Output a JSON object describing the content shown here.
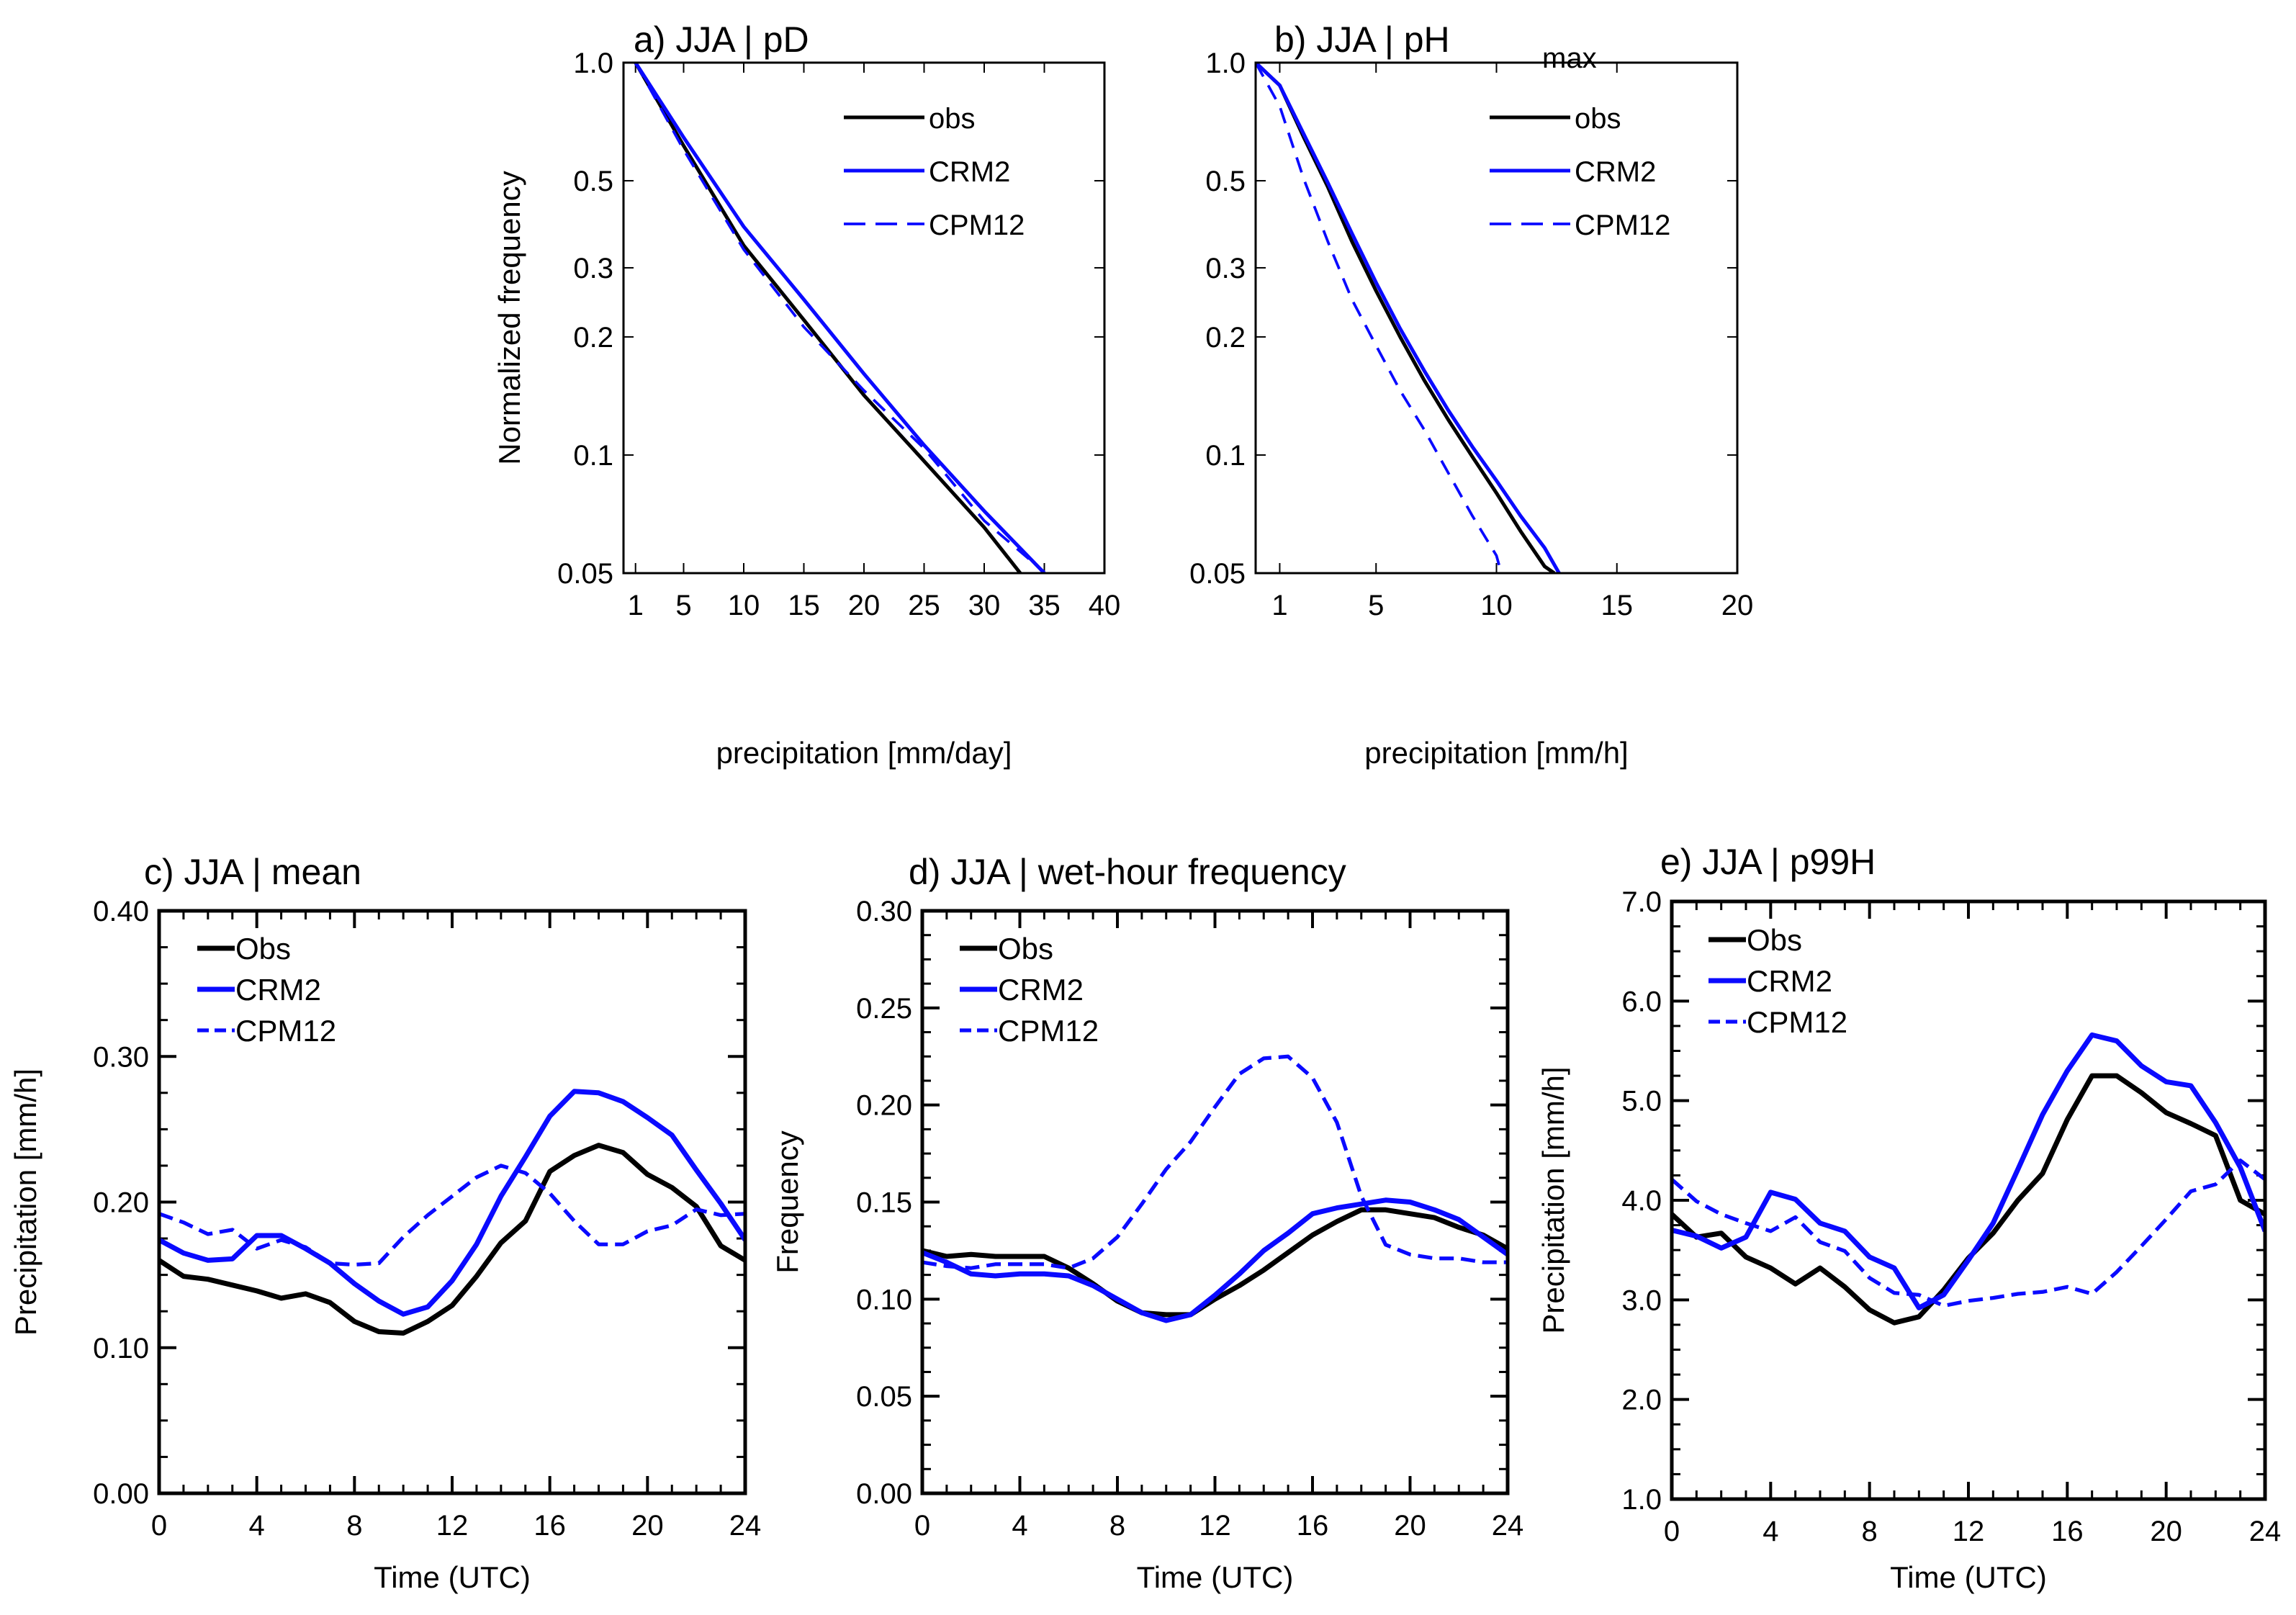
{
  "colors": {
    "obs": "#000000",
    "model": "#0a0aff",
    "axis": "#000000"
  },
  "chart_data": [
    {
      "id": "a",
      "type": "line",
      "title": "a) JJA | pD",
      "title_sub": "",
      "xlabel": "precipitation [mm/day]",
      "ylabel": "Normalized frequency",
      "yscale": "log",
      "xlim": [
        0,
        40
      ],
      "ylim": [
        0.05,
        1.0
      ],
      "xticks": [
        1,
        5,
        10,
        15,
        20,
        25,
        30,
        35,
        40
      ],
      "xtick_labels": [
        "1",
        "5",
        "10",
        "15",
        "20",
        "25",
        "30",
        "35",
        "40"
      ],
      "yticks": [
        0.05,
        0.1,
        0.2,
        0.3,
        0.5,
        1.0
      ],
      "ytick_labels": [
        "0.05",
        "0.1",
        "0.2",
        "0.3",
        "0.5",
        "1.0"
      ],
      "legend": "top-right",
      "series": [
        {
          "name": "obs",
          "style": "solid-black",
          "x": [
            1,
            5,
            10,
            15,
            20,
            25,
            30,
            33
          ],
          "y": [
            1.0,
            0.614,
            0.342,
            0.221,
            0.142,
            0.0965,
            0.0654,
            0.05
          ]
        },
        {
          "name": "CRM2",
          "style": "solid-blue",
          "x": [
            1,
            5,
            10,
            15,
            20,
            25,
            30,
            35
          ],
          "y": [
            1.0,
            0.645,
            0.382,
            0.249,
            0.161,
            0.106,
            0.072,
            0.05
          ]
        },
        {
          "name": "CPM12",
          "style": "dashed-blue",
          "x": [
            1,
            5,
            10,
            15,
            20,
            25,
            30,
            35
          ],
          "y": [
            1.0,
            0.6,
            0.334,
            0.212,
            0.146,
            0.104,
            0.068,
            0.0503
          ]
        }
      ]
    },
    {
      "id": "b",
      "type": "line",
      "title": "b) JJA | pH",
      "title_sub": "max",
      "xlabel": "precipitation [mm/h]",
      "ylabel": "",
      "yscale": "log",
      "xlim": [
        0,
        20
      ],
      "ylim": [
        0.05,
        1.0
      ],
      "xticks": [
        1,
        5,
        10,
        15,
        20
      ],
      "xtick_labels": [
        "1",
        "5",
        "10",
        "15",
        "20"
      ],
      "yticks": [
        0.05,
        0.1,
        0.2,
        0.3,
        0.5,
        1.0
      ],
      "ytick_labels": [
        "0.05",
        "0.1",
        "0.2",
        "0.3",
        "0.5",
        "1.0"
      ],
      "legend": "top-right",
      "series": [
        {
          "name": "obs",
          "style": "solid-black",
          "x": [
            0,
            1,
            2,
            3,
            4,
            5,
            6,
            7,
            8,
            9,
            10,
            11,
            12,
            12.4
          ],
          "y": [
            1.0,
            0.875,
            0.645,
            0.482,
            0.35,
            0.262,
            0.2,
            0.155,
            0.123,
            0.099,
            0.08,
            0.064,
            0.052,
            0.05
          ]
        },
        {
          "name": "CRM2",
          "style": "solid-blue",
          "x": [
            0,
            1,
            2,
            3,
            4,
            5,
            6,
            7,
            8,
            9,
            10,
            11,
            12,
            12.6
          ],
          "y": [
            1.0,
            0.875,
            0.657,
            0.494,
            0.367,
            0.275,
            0.21,
            0.164,
            0.13,
            0.105,
            0.086,
            0.07,
            0.058,
            0.05
          ]
        },
        {
          "name": "CPM12",
          "style": "dashed-blue",
          "x": [
            0,
            1,
            2,
            3,
            4,
            5,
            6,
            7,
            8,
            9,
            10,
            10.2
          ],
          "y": [
            1.0,
            0.774,
            0.505,
            0.35,
            0.249,
            0.19,
            0.146,
            0.116,
            0.09,
            0.07,
            0.0554,
            0.05
          ]
        }
      ]
    },
    {
      "id": "c",
      "type": "line",
      "title": "c) JJA | mean",
      "title_sub": "",
      "xlabel": "Time (UTC)",
      "ylabel": "Precipitation [mm/h]",
      "yscale": "linear",
      "xlim": [
        0,
        24
      ],
      "ylim": [
        0,
        0.4
      ],
      "xticks": [
        0,
        4,
        8,
        12,
        16,
        20,
        24
      ],
      "xtick_labels": [
        "0",
        "4",
        "8",
        "12",
        "16",
        "20",
        "24"
      ],
      "x_minor_step": 1,
      "yticks": [
        0,
        0.1,
        0.2,
        0.3,
        0.4
      ],
      "ytick_labels": [
        "0.00",
        "0.10",
        "0.20",
        "0.30",
        "0.40"
      ],
      "y_minor_step": 0.025,
      "legend": "top-left",
      "series": [
        {
          "name": "Obs",
          "style": "solid-black",
          "x": [
            0,
            1,
            2,
            3,
            4,
            5,
            6,
            7,
            8,
            9,
            10,
            11,
            12,
            13,
            14,
            15,
            16,
            17,
            18,
            19,
            20,
            21,
            22,
            23,
            24
          ],
          "y": [
            0.16,
            0.149,
            0.147,
            0.143,
            0.139,
            0.134,
            0.137,
            0.131,
            0.118,
            0.111,
            0.11,
            0.118,
            0.129,
            0.149,
            0.172,
            0.187,
            0.221,
            0.232,
            0.239,
            0.234,
            0.219,
            0.21,
            0.197,
            0.17,
            0.16
          ]
        },
        {
          "name": "CRM2",
          "style": "solid-blue",
          "x": [
            0,
            1,
            2,
            3,
            4,
            5,
            6,
            7,
            8,
            9,
            10,
            11,
            12,
            13,
            14,
            15,
            16,
            17,
            18,
            19,
            20,
            21,
            22,
            23,
            24
          ],
          "y": [
            0.174,
            0.165,
            0.16,
            0.161,
            0.177,
            0.177,
            0.168,
            0.158,
            0.144,
            0.132,
            0.123,
            0.128,
            0.146,
            0.171,
            0.204,
            0.231,
            0.259,
            0.276,
            0.275,
            0.269,
            0.258,
            0.246,
            0.222,
            0.199,
            0.174
          ]
        },
        {
          "name": "CPM12",
          "style": "dashed-blue",
          "x": [
            0,
            1,
            2,
            3,
            4,
            5,
            6,
            7,
            8,
            9,
            10,
            11,
            12,
            13,
            14,
            15,
            16,
            17,
            18,
            19,
            20,
            21,
            22,
            23,
            24
          ],
          "y": [
            0.192,
            0.186,
            0.178,
            0.181,
            0.168,
            0.174,
            0.169,
            0.158,
            0.157,
            0.158,
            0.176,
            0.191,
            0.204,
            0.217,
            0.225,
            0.22,
            0.206,
            0.187,
            0.171,
            0.171,
            0.18,
            0.184,
            0.195,
            0.191,
            0.192
          ]
        }
      ]
    },
    {
      "id": "d",
      "type": "line",
      "title": "d) JJA | wet-hour frequency",
      "title_sub": "",
      "xlabel": "Time (UTC)",
      "ylabel": "Frequency",
      "yscale": "linear",
      "xlim": [
        0,
        24
      ],
      "ylim": [
        0,
        0.3
      ],
      "xticks": [
        0,
        4,
        8,
        12,
        16,
        20,
        24
      ],
      "xtick_labels": [
        "0",
        "4",
        "8",
        "12",
        "16",
        "20",
        "24"
      ],
      "x_minor_step": 1,
      "yticks": [
        0,
        0.05,
        0.1,
        0.15,
        0.2,
        0.25,
        0.3
      ],
      "ytick_labels": [
        "0.00",
        "0.05",
        "0.10",
        "0.15",
        "0.20",
        "0.25",
        "0.30"
      ],
      "y_minor_step": 0.0125,
      "legend": "top-left",
      "series": [
        {
          "name": "Obs",
          "style": "solid-black",
          "x": [
            0,
            1,
            2,
            3,
            4,
            5,
            6,
            7,
            8,
            9,
            10,
            11,
            12,
            13,
            14,
            15,
            16,
            17,
            18,
            19,
            20,
            21,
            22,
            23,
            24
          ],
          "y": [
            0.125,
            0.122,
            0.123,
            0.122,
            0.122,
            0.122,
            0.116,
            0.108,
            0.099,
            0.093,
            0.092,
            0.092,
            0.1,
            0.107,
            0.115,
            0.124,
            0.133,
            0.14,
            0.146,
            0.146,
            0.144,
            0.142,
            0.137,
            0.133,
            0.126
          ]
        },
        {
          "name": "CRM2",
          "style": "solid-blue",
          "x": [
            0,
            1,
            2,
            3,
            4,
            5,
            6,
            7,
            8,
            9,
            10,
            11,
            12,
            13,
            14,
            15,
            16,
            17,
            18,
            19,
            20,
            21,
            22,
            23,
            24
          ],
          "y": [
            0.124,
            0.119,
            0.113,
            0.112,
            0.113,
            0.113,
            0.112,
            0.107,
            0.1,
            0.093,
            0.089,
            0.092,
            0.102,
            0.113,
            0.125,
            0.134,
            0.144,
            0.147,
            0.149,
            0.151,
            0.15,
            0.146,
            0.141,
            0.132,
            0.123
          ]
        },
        {
          "name": "CPM12",
          "style": "dashed-blue",
          "x": [
            0,
            1,
            2,
            3,
            4,
            5,
            6,
            7,
            8,
            9,
            10,
            11,
            12,
            13,
            14,
            15,
            16,
            17,
            18,
            19,
            20,
            21,
            22,
            23,
            24
          ],
          "y": [
            0.119,
            0.117,
            0.116,
            0.118,
            0.118,
            0.118,
            0.116,
            0.121,
            0.132,
            0.149,
            0.167,
            0.181,
            0.199,
            0.216,
            0.224,
            0.225,
            0.214,
            0.191,
            0.153,
            0.128,
            0.123,
            0.121,
            0.121,
            0.119,
            0.119
          ]
        }
      ]
    },
    {
      "id": "e",
      "type": "line",
      "title": "e) JJA | p99H",
      "title_sub": "",
      "xlabel": "Time (UTC)",
      "ylabel": "Precipitation [mm/h]",
      "yscale": "linear",
      "xlim": [
        0,
        24
      ],
      "ylim": [
        1.0,
        7.0
      ],
      "xticks": [
        0,
        4,
        8,
        12,
        16,
        20,
        24
      ],
      "xtick_labels": [
        "0",
        "4",
        "8",
        "12",
        "16",
        "20",
        "24"
      ],
      "x_minor_step": 1,
      "yticks": [
        1,
        2,
        3,
        4,
        5,
        6,
        7
      ],
      "ytick_labels": [
        "1.0",
        "2.0",
        "3.0",
        "4.0",
        "5.0",
        "6.0",
        "7.0"
      ],
      "y_minor_step": 0.25,
      "legend": "top-left",
      "series": [
        {
          "name": "Obs",
          "style": "solid-black",
          "x": [
            0,
            1,
            2,
            3,
            4,
            5,
            6,
            7,
            8,
            9,
            10,
            11,
            12,
            13,
            14,
            15,
            16,
            17,
            18,
            19,
            20,
            21,
            22,
            23,
            24
          ],
          "y": [
            3.86,
            3.63,
            3.67,
            3.43,
            3.32,
            3.16,
            3.32,
            3.13,
            2.9,
            2.77,
            2.83,
            3.1,
            3.42,
            3.67,
            4.0,
            4.27,
            4.81,
            5.25,
            5.25,
            5.08,
            4.88,
            4.77,
            4.65,
            4.0,
            3.86
          ]
        },
        {
          "name": "CRM2",
          "style": "solid-blue",
          "x": [
            0,
            1,
            2,
            3,
            4,
            5,
            6,
            7,
            8,
            9,
            10,
            11,
            12,
            13,
            14,
            15,
            16,
            17,
            18,
            19,
            20,
            21,
            22,
            23,
            24
          ],
          "y": [
            3.7,
            3.64,
            3.52,
            3.63,
            4.08,
            4.01,
            3.77,
            3.69,
            3.43,
            3.32,
            2.92,
            3.05,
            3.4,
            3.77,
            4.31,
            4.86,
            5.3,
            5.66,
            5.6,
            5.35,
            5.19,
            5.15,
            4.78,
            4.33,
            3.69
          ]
        },
        {
          "name": "CPM12",
          "style": "dashed-blue",
          "x": [
            0,
            1,
            2,
            3,
            4,
            5,
            6,
            7,
            8,
            9,
            10,
            11,
            12,
            13,
            14,
            15,
            16,
            17,
            18,
            19,
            20,
            21,
            22,
            23,
            24
          ],
          "y": [
            4.21,
            3.99,
            3.86,
            3.77,
            3.69,
            3.83,
            3.58,
            3.49,
            3.22,
            3.07,
            3.05,
            2.94,
            2.99,
            3.02,
            3.06,
            3.08,
            3.13,
            3.06,
            3.28,
            3.54,
            3.81,
            4.09,
            4.16,
            4.4,
            4.21
          ]
        }
      ]
    }
  ]
}
